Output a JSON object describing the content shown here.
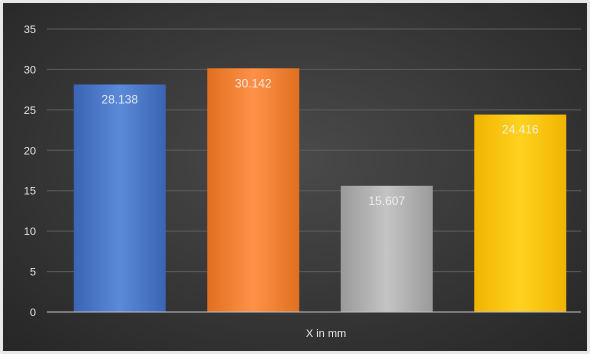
{
  "chart_data": {
    "type": "bar",
    "categories": [
      "",
      "",
      "",
      ""
    ],
    "values": [
      28.138,
      30.142,
      15.607,
      24.416
    ],
    "data_labels": [
      "28.138",
      "30.142",
      "15.607",
      "24.416"
    ],
    "colors": [
      "#4472c4",
      "#ed7d31",
      "#a5a5a5",
      "#ffc000"
    ],
    "title": "",
    "xlabel": "X in mm",
    "ylabel": "",
    "ylim": [
      0,
      35
    ],
    "yticks": [
      "0",
      "5",
      "10",
      "15",
      "20",
      "25",
      "30",
      "35"
    ],
    "grid": true,
    "legend": "none"
  }
}
